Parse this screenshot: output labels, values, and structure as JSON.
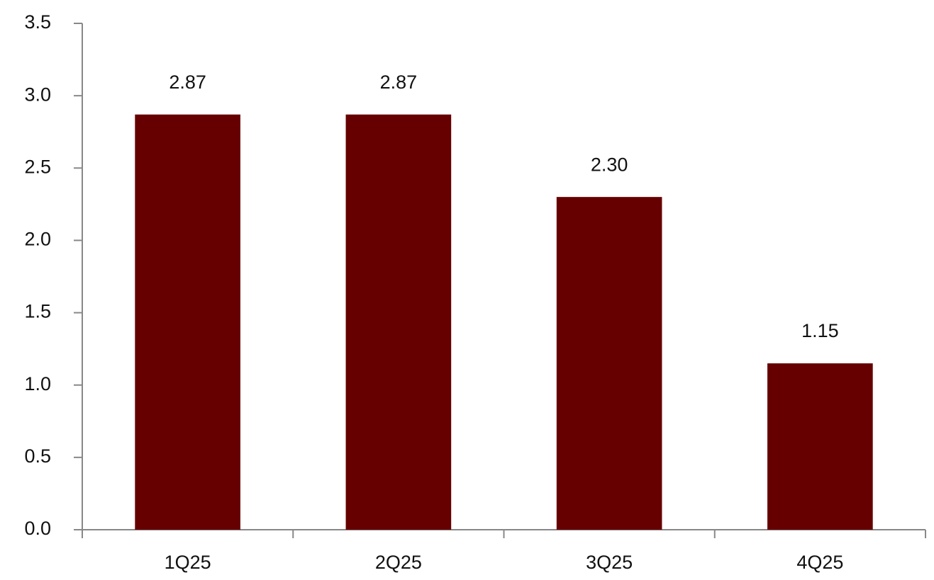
{
  "chart_data": {
    "type": "bar",
    "categories": [
      "1Q25",
      "2Q25",
      "3Q25",
      "4Q25"
    ],
    "values": [
      2.87,
      2.87,
      2.3,
      1.15
    ],
    "value_labels": [
      "2.87",
      "2.87",
      "2.30",
      "1.15"
    ],
    "color": "#660000",
    "ylim": [
      0,
      3.5
    ],
    "yticks": [
      {
        "value": 0,
        "label": "0.0"
      },
      0.5,
      {
        "value": 1,
        "label": "1.0"
      },
      1.5,
      {
        "value": 2,
        "label": "2.0"
      },
      2.5,
      {
        "value": 3,
        "label": "3.0"
      },
      3.5
    ],
    "grid": false
  }
}
